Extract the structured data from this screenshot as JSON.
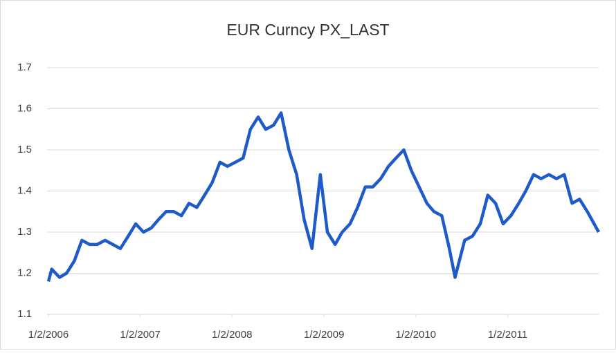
{
  "chart_data": {
    "type": "line",
    "title": "EUR Curncy PX_LAST",
    "x": [
      "2006-01-02",
      "2006-01-15",
      "2006-02-15",
      "2006-03-15",
      "2006-04-15",
      "2006-05-15",
      "2006-06-15",
      "2006-07-15",
      "2006-08-15",
      "2006-09-15",
      "2006-10-15",
      "2006-11-15",
      "2006-12-15",
      "2007-01-15",
      "2007-02-15",
      "2007-03-15",
      "2007-04-15",
      "2007-05-15",
      "2007-06-15",
      "2007-07-15",
      "2007-08-15",
      "2007-09-15",
      "2007-10-15",
      "2007-11-15",
      "2007-12-15",
      "2008-01-15",
      "2008-02-15",
      "2008-03-15",
      "2008-04-15",
      "2008-05-15",
      "2008-06-15",
      "2008-07-15",
      "2008-08-15",
      "2008-09-15",
      "2008-10-15",
      "2008-11-15",
      "2008-12-18",
      "2009-01-15",
      "2009-02-15",
      "2009-03-15",
      "2009-04-15",
      "2009-05-15",
      "2009-06-15",
      "2009-07-15",
      "2009-08-15",
      "2009-09-15",
      "2009-10-15",
      "2009-11-15",
      "2009-12-15",
      "2010-01-15",
      "2010-02-15",
      "2010-03-15",
      "2010-04-15",
      "2010-05-15",
      "2010-06-07",
      "2010-07-15",
      "2010-08-15",
      "2010-09-15",
      "2010-10-15",
      "2010-11-15",
      "2010-12-15",
      "2011-01-15",
      "2011-02-15",
      "2011-03-15",
      "2011-04-15",
      "2011-05-15",
      "2011-06-15",
      "2011-07-15",
      "2011-08-15",
      "2011-09-15",
      "2011-10-15",
      "2011-11-15",
      "2011-12-30"
    ],
    "series": [
      {
        "name": "EUR Curncy PX_LAST",
        "color": "#1f5bc8",
        "values": [
          1.18,
          1.21,
          1.19,
          1.2,
          1.23,
          1.28,
          1.27,
          1.27,
          1.28,
          1.27,
          1.26,
          1.29,
          1.32,
          1.3,
          1.31,
          1.33,
          1.35,
          1.35,
          1.34,
          1.37,
          1.36,
          1.39,
          1.42,
          1.47,
          1.46,
          1.47,
          1.48,
          1.55,
          1.58,
          1.55,
          1.56,
          1.59,
          1.5,
          1.44,
          1.33,
          1.26,
          1.44,
          1.3,
          1.27,
          1.3,
          1.32,
          1.36,
          1.41,
          1.41,
          1.43,
          1.46,
          1.48,
          1.5,
          1.45,
          1.41,
          1.37,
          1.35,
          1.34,
          1.26,
          1.19,
          1.28,
          1.29,
          1.32,
          1.39,
          1.37,
          1.32,
          1.34,
          1.37,
          1.4,
          1.44,
          1.43,
          1.44,
          1.43,
          1.44,
          1.37,
          1.38,
          1.35,
          1.3
        ]
      }
    ],
    "xlim": [
      "2006-01-02",
      "2011-12-30"
    ],
    "xticks": [
      {
        "value": "2006-01-02",
        "label": "1/2/2006"
      },
      {
        "value": "2007-01-02",
        "label": "1/2/2007"
      },
      {
        "value": "2008-01-02",
        "label": "1/2/2008"
      },
      {
        "value": "2009-01-02",
        "label": "1/2/2009"
      },
      {
        "value": "2010-01-02",
        "label": "1/2/2010"
      },
      {
        "value": "2011-01-02",
        "label": "1/2/2011"
      }
    ],
    "ylim": [
      1.1,
      1.7
    ],
    "yticks": [
      1.1,
      1.2,
      1.3,
      1.4,
      1.5,
      1.6,
      1.7
    ],
    "grid": true
  }
}
